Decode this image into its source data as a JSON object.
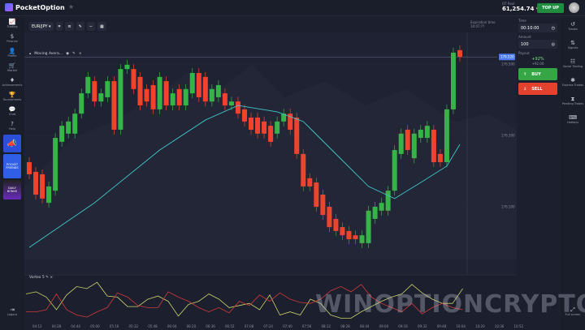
{
  "app": {
    "name": "PocketOption"
  },
  "header": {
    "balance_label": "QT Real",
    "balance": "61,254.74",
    "topup": "TOP UP"
  },
  "toolbar": {
    "pair": "EUR/JPY",
    "indicator": "Moving Avera..."
  },
  "left_sidebar": [
    {
      "label": "Trading",
      "icon": "chart-icon"
    },
    {
      "label": "Finance",
      "icon": "dollar-icon"
    },
    {
      "label": "Profile",
      "icon": "user-icon"
    },
    {
      "label": "Market",
      "icon": "cart-icon"
    },
    {
      "label": "Achievements",
      "icon": "diamond-icon"
    },
    {
      "label": "Tournaments",
      "icon": "trophy-icon"
    },
    {
      "label": "Chat",
      "icon": "chat-icon"
    },
    {
      "label": "Help",
      "icon": "help-icon"
    }
  ],
  "promos": [
    "POCKET FRIENDS",
    "DAILY BONUS"
  ],
  "left_bottom": {
    "logout": "Logout"
  },
  "right_sidebar": [
    {
      "label": "Trades",
      "icon": "history-icon"
    },
    {
      "label": "Signals",
      "icon": "signal-icon"
    },
    {
      "label": "Social Trading",
      "icon": "social-icon"
    },
    {
      "label": "Express Trades",
      "icon": "express-icon"
    },
    {
      "label": "Pending Trades",
      "icon": "pending-icon"
    },
    {
      "label": "Hotkeys",
      "icon": "keyboard-icon"
    }
  ],
  "right_bottom": {
    "fullscreen": "Full screen"
  },
  "trade_panel": {
    "time_label": "Time",
    "time": "00:10:00",
    "amount_label": "Amount",
    "amount": "100",
    "payout_label": "Payout",
    "payout_pct": "+92%",
    "payout_value": "+92.00",
    "buy": "BUY",
    "sell": "SELL"
  },
  "expiration": {
    "label": "Expiration time",
    "value": "10:07:??"
  },
  "colors": {
    "bull": "#35b447",
    "bear": "#f0432c",
    "ma": "#3ec8c8",
    "vortex_plus": "#c9d36a",
    "vortex_minus": "#d23a3a",
    "accent": "#4c7cf0"
  },
  "indicator_panel": {
    "label": "Vortex 5"
  },
  "chart_data": {
    "type": "candlestick",
    "symbol": "EUR/JPY",
    "price_ticks": [
      "176.500",
      "176.300",
      "176.100"
    ],
    "current_price": "176.520",
    "time_ticks": [
      "04:12",
      "04:28",
      "04:44",
      "05:00",
      "05:16",
      "05:32",
      "05:48",
      "06:04",
      "06:20",
      "06:36",
      "06:52",
      "07:08",
      "07:24",
      "07:40",
      "07:56",
      "08:12",
      "08:28",
      "08:44",
      "09:00",
      "09:16",
      "09:32",
      "09:48",
      "10:04",
      "10:20",
      "10:36",
      "10:52"
    ],
    "candles_open_close": [
      [
        176.225,
        176.191
      ],
      [
        176.198,
        176.134
      ],
      [
        176.191,
        176.123
      ],
      [
        176.111,
        176.157
      ],
      [
        176.145,
        176.293
      ],
      [
        176.282,
        176.327
      ],
      [
        176.305,
        176.339
      ],
      [
        176.305,
        176.361
      ],
      [
        176.361,
        176.418
      ],
      [
        176.418,
        176.464
      ],
      [
        176.452,
        176.395
      ],
      [
        176.395,
        176.418
      ],
      [
        176.407,
        176.452
      ],
      [
        176.452,
        176.316
      ],
      [
        176.316,
        176.486
      ],
      [
        176.486,
        176.498
      ],
      [
        176.486,
        176.43
      ],
      [
        176.464,
        176.384
      ],
      [
        176.43,
        176.395
      ],
      [
        176.441,
        176.373
      ],
      [
        176.373,
        176.464
      ],
      [
        176.452,
        176.384
      ],
      [
        176.384,
        176.418
      ],
      [
        176.43,
        176.384
      ],
      [
        176.384,
        176.43
      ],
      [
        176.418,
        176.475
      ],
      [
        176.475,
        176.407
      ],
      [
        176.464,
        176.395
      ],
      [
        176.395,
        176.43
      ],
      [
        176.407,
        176.441
      ],
      [
        176.418,
        176.384
      ],
      [
        176.384,
        176.395
      ],
      [
        176.395,
        176.361
      ],
      [
        176.373,
        176.339
      ],
      [
        176.35,
        176.316
      ],
      [
        176.35,
        176.305
      ],
      [
        176.339,
        176.305
      ],
      [
        176.327,
        176.282
      ],
      [
        176.305,
        176.339
      ],
      [
        176.339,
        176.361
      ],
      [
        176.361,
        176.316
      ],
      [
        176.35,
        176.248
      ],
      [
        176.248,
        176.157
      ],
      [
        176.18,
        176.157
      ],
      [
        176.168,
        176.1
      ],
      [
        176.134,
        176.077
      ],
      [
        176.1,
        176.043
      ],
      [
        176.066,
        176.032
      ],
      [
        176.043,
        176.02
      ],
      [
        176.032,
        176.009
      ],
      [
        176.02,
        176.009
      ],
      [
        175.998,
        176.02
      ],
      [
        175.998,
        176.089
      ],
      [
        176.066,
        176.1
      ],
      [
        176.089,
        176.111
      ],
      [
        176.089,
        176.145
      ],
      [
        176.145,
        176.259
      ],
      [
        176.248,
        176.305
      ],
      [
        176.316,
        176.259
      ],
      [
        176.236,
        176.305
      ],
      [
        176.293,
        176.316
      ],
      [
        176.293,
        176.327
      ],
      [
        176.316,
        176.225
      ],
      [
        176.248,
        176.225
      ],
      [
        176.225,
        176.373
      ],
      [
        176.373,
        176.532
      ],
      [
        176.539,
        176.52
      ]
    ],
    "moving_average": [
      [
        0,
        175.986
      ],
      [
        10,
        176.111
      ],
      [
        20,
        176.259
      ],
      [
        27,
        176.343
      ],
      [
        32,
        176.384
      ],
      [
        38,
        176.366
      ],
      [
        42,
        176.339
      ],
      [
        47,
        176.248
      ],
      [
        52,
        176.157
      ],
      [
        56,
        176.123
      ],
      [
        60,
        176.168
      ],
      [
        64,
        176.214
      ],
      [
        66,
        176.275
      ]
    ],
    "vortex_plus": [
      1.05,
      1.07,
      1.02,
      0.9,
      1.04,
      1.12,
      1.1,
      1.16,
      1.03,
      1.02,
      0.93,
      0.93,
      1.0,
      1.03,
      0.98,
      0.84,
      0.95,
      0.98,
      1.05,
      1.0,
      0.92,
      0.94,
      0.96,
      0.9,
      1.04,
      0.85,
      0.88,
      0.85,
      1.0,
      0.96,
      0.85,
      0.82,
      0.82,
      0.88,
      0.93,
      0.98,
      1.02,
      1.05,
      1.14,
      1.06,
      1.0,
      0.96,
      0.96,
      1.1
    ],
    "vortex_minus": [
      0.88,
      0.88,
      0.9,
      1.05,
      0.9,
      0.85,
      0.83,
      0.88,
      0.92,
      1.06,
      1.02,
      0.94,
      0.92,
      0.92,
      1.07,
      1.02,
      0.98,
      0.92,
      0.88,
      0.92,
      0.87,
      0.98,
      0.94,
      1.04,
      0.98,
      1.06,
      1.0,
      0.97,
      0.96,
      1.0,
      1.08,
      1.12,
      1.07,
      1.14,
      1.02,
      0.96,
      0.92,
      0.88,
      0.96,
      0.86,
      0.92,
      0.96,
      0.92,
      0.9
    ]
  }
}
